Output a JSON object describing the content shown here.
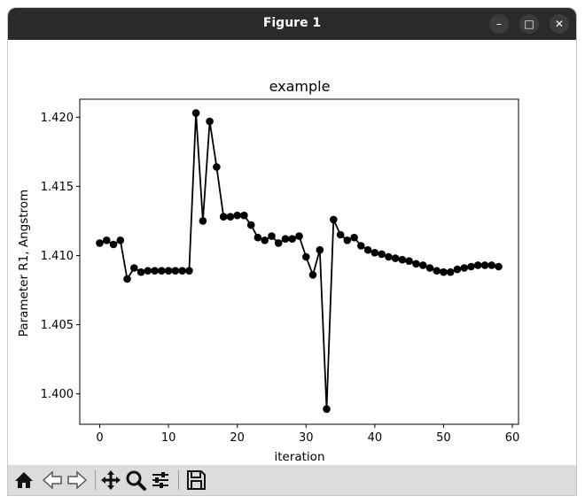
{
  "window": {
    "title": "Figure 1"
  },
  "toolbar_icons": [
    "home-icon",
    "back-arrow-icon",
    "forward-arrow-icon",
    "pan-icon",
    "zoom-icon",
    "configure-subplots-icon",
    "save-icon"
  ],
  "chart_data": {
    "type": "line",
    "title": "example",
    "xlabel": "iteration",
    "ylabel": "Parameter R1, Angstrom",
    "xlim": [
      -2.9,
      60.9
    ],
    "ylim": [
      1.3978,
      1.4213
    ],
    "xticks": [
      0,
      10,
      20,
      30,
      40,
      50,
      60
    ],
    "yticks": [
      "1.400",
      "1.405",
      "1.410",
      "1.415",
      "1.420"
    ],
    "ytick_values": [
      1.4,
      1.405,
      1.41,
      1.415,
      1.42
    ],
    "grid": false,
    "marker": "circle",
    "color": "#000000",
    "series": [
      {
        "x": [
          0,
          1,
          2,
          3,
          4,
          5,
          6,
          7,
          8,
          9,
          10,
          11,
          12,
          13,
          14,
          15,
          16,
          17,
          18,
          19,
          20,
          21,
          22,
          23,
          24,
          25,
          26,
          27,
          28,
          29,
          30,
          31,
          32,
          33,
          34,
          35,
          36,
          37,
          38,
          39,
          40,
          41,
          42,
          43,
          44,
          45,
          46,
          47,
          48,
          49,
          50,
          51,
          52,
          53,
          54,
          55,
          56,
          57,
          58
        ],
        "y": [
          1.4109,
          1.4111,
          1.4108,
          1.4111,
          1.4083,
          1.4091,
          1.4088,
          1.4089,
          1.4089,
          1.4089,
          1.4089,
          1.4089,
          1.4089,
          1.4089,
          1.4203,
          1.4125,
          1.4197,
          1.4164,
          1.4128,
          1.4128,
          1.4129,
          1.4129,
          1.4122,
          1.4113,
          1.4111,
          1.4114,
          1.4109,
          1.4112,
          1.4112,
          1.4114,
          1.4099,
          1.4086,
          1.4104,
          1.3989,
          1.4126,
          1.4115,
          1.4111,
          1.4113,
          1.4107,
          1.4104,
          1.4102,
          1.4101,
          1.4099,
          1.4098,
          1.4097,
          1.4096,
          1.4094,
          1.4093,
          1.4091,
          1.4089,
          1.4088,
          1.4088,
          1.409,
          1.4091,
          1.4092,
          1.4093,
          1.4093,
          1.4093,
          1.4092
        ]
      }
    ]
  }
}
